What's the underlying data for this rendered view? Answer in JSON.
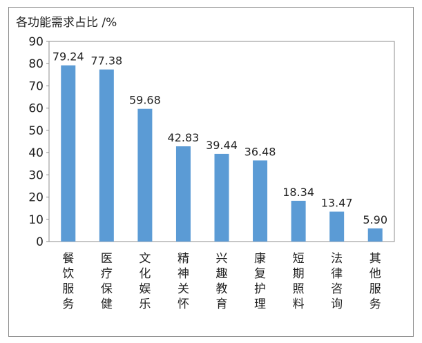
{
  "chart_data": {
    "type": "bar",
    "title": "各功能需求占比 /%",
    "categories": [
      "餐饮服务",
      "医疗保健",
      "文化娱乐",
      "精神关怀",
      "兴趣教育",
      "康复护理",
      "短期照料",
      "法律咨询",
      "其他服务"
    ],
    "values": [
      79.24,
      77.38,
      59.68,
      42.83,
      39.44,
      36.48,
      18.34,
      13.47,
      5.9
    ],
    "value_labels": [
      "79.24",
      "77.38",
      "59.68",
      "42.83",
      "39.44",
      "36.48",
      "18.34",
      "13.47",
      "5.90"
    ],
    "y_ticks": [
      "0",
      "10",
      "20",
      "30",
      "40",
      "50",
      "60",
      "70",
      "80",
      "90"
    ],
    "ylim": [
      0,
      90
    ],
    "xlabel": "",
    "ylabel": "",
    "grid": false,
    "legend": "none",
    "bar_color": "#5b9bd5"
  }
}
